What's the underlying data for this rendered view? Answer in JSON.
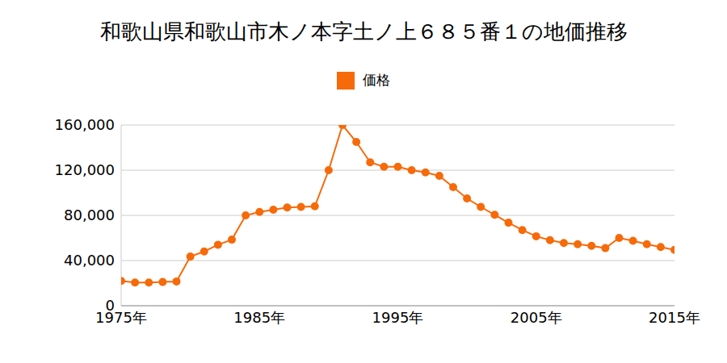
{
  "chart_data": {
    "type": "line",
    "title": "和歌山県和歌山市木ノ本字土ノ上６８５番１の地価推移",
    "x": [
      1975,
      1976,
      1977,
      1978,
      1979,
      1980,
      1981,
      1982,
      1983,
      1984,
      1985,
      1986,
      1987,
      1988,
      1989,
      1990,
      1991,
      1992,
      1993,
      1994,
      1995,
      1996,
      1997,
      1998,
      1999,
      2000,
      2001,
      2002,
      2003,
      2004,
      2005,
      2006,
      2007,
      2008,
      2009,
      2010,
      2011,
      2012,
      2013,
      2014,
      2015
    ],
    "series": [
      {
        "name": "価格",
        "color": "#f66a0a",
        "marker": "circle",
        "values": [
          22000,
          20500,
          20500,
          21000,
          21500,
          43500,
          48000,
          54000,
          58500,
          80000,
          83000,
          85000,
          87000,
          87500,
          88000,
          120000,
          160000,
          145000,
          127000,
          123000,
          123000,
          120000,
          118000,
          115000,
          105000,
          95000,
          87500,
          80500,
          73500,
          67000,
          61500,
          58000,
          55500,
          54500,
          53000,
          51000,
          60000,
          57500,
          54500,
          52000,
          49500
        ]
      }
    ],
    "xlim": [
      1975,
      2015
    ],
    "xticks": [
      {
        "value": 1975,
        "label": "1975年"
      },
      {
        "value": 1985,
        "label": "1985年"
      },
      {
        "value": 1995,
        "label": "1995年"
      },
      {
        "value": 2005,
        "label": "2005年"
      },
      {
        "value": 2015,
        "label": "2015年"
      }
    ],
    "ylim": [
      0,
      160000
    ],
    "yticks": [
      0,
      {
        "value": 40000,
        "label": "40,000"
      },
      {
        "value": 80000,
        "label": "80,000"
      },
      {
        "value": 120000,
        "label": "120,000"
      },
      {
        "value": 160000,
        "label": "160,000"
      }
    ],
    "grid": true,
    "legend": "top"
  }
}
